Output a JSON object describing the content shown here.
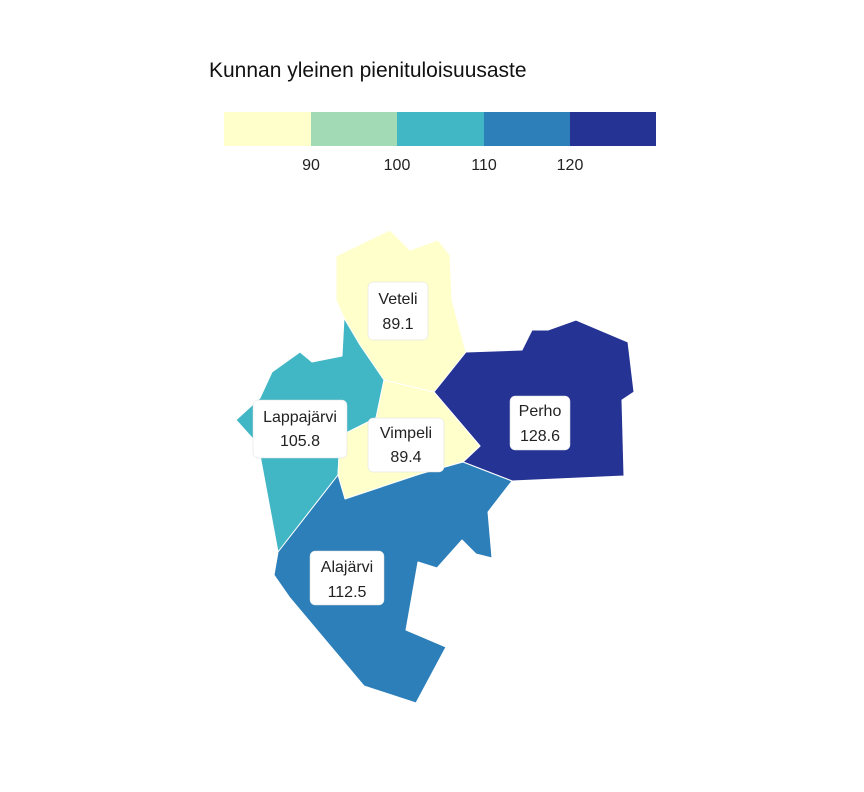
{
  "legend": {
    "title": "Kunnan yleinen pienituloisuusaste",
    "colors": [
      "#ffffcc",
      "#a1dab4",
      "#41b6c4",
      "#2c7fb8",
      "#253494"
    ],
    "ticks": [
      "90",
      "100",
      "110",
      "120"
    ],
    "breaks": [
      90,
      100,
      110,
      120
    ]
  },
  "regions": [
    {
      "id": "veteli",
      "name": "Veteli",
      "value": "89.1",
      "color": "#ffffcc"
    },
    {
      "id": "lappajarvi",
      "name": "Lappajärvi",
      "value": "105.8",
      "color": "#41b6c4"
    },
    {
      "id": "vimpeli",
      "name": "Vimpeli",
      "value": "89.4",
      "color": "#ffffcc"
    },
    {
      "id": "perho",
      "name": "Perho",
      "value": "128.6",
      "color": "#253494"
    },
    {
      "id": "alajarvi",
      "name": "Alajärvi",
      "value": "112.5",
      "color": "#2c7fb8"
    }
  ]
}
